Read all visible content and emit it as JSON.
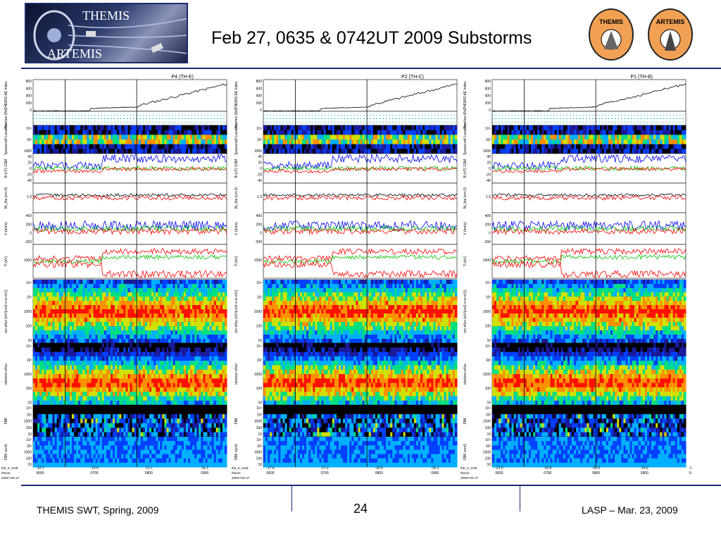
{
  "header": {
    "title": "Feb 27, 0635 & 0742UT 2009 Substorms",
    "logo_top": "THEMIS",
    "logo_bottom": "ARTEMIS",
    "badge_left": "THEMIS",
    "badge_right": "ARTEMIS"
  },
  "footer": {
    "left": "THEMIS SWT, Spring, 2009",
    "page": "24",
    "right": "LASP – Mar. 23, 2009"
  },
  "colors": {
    "accent": "#1c2a7a",
    "badge": "#f2a154"
  },
  "chart_data": [
    {
      "type": "line",
      "title": "P4 (TH-E)",
      "panel_labels": [
        "THEMIS AE Index",
        "Position (Re)",
        "Spacecraft Location",
        "B (nT) GSM",
        "Ni_tha (cm-3)",
        "V (km/s)",
        "Ti (eV)",
        "ion eflux (eV/(cm2-s-sr-eV))",
        "electron eflux",
        "FBK",
        "FBK scm1"
      ],
      "ae_ticks": [
        "800",
        "600",
        "400",
        "200",
        "0"
      ],
      "b_ticks": [
        "40",
        "20",
        "0",
        "-20",
        "-40"
      ],
      "v_ticks": [
        "400",
        "200",
        "0",
        "-200"
      ],
      "spec_ticks": [
        "10⁴",
        "10²",
        "1000",
        "100",
        "10"
      ],
      "x_ticks": [
        "0600",
        "0700",
        "0800",
        "0900"
      ],
      "orbit": {
        "xgse": [
          "-10.7",
          "-10.9",
          "-11.1",
          "-11.1"
        ],
        "ygse": [
          "-1.1",
          "-1.5",
          "-2.4",
          "-3.0"
        ],
        "zgse": [
          "-1.1",
          "-1.3",
          "-2.4",
          "-2.0"
        ]
      },
      "row_labels": [
        "thb_X_GSE",
        "thb_Y_GSE",
        "thb_Z_GSE",
        "hhmm",
        "2009 Feb 27"
      ],
      "ae_values": [
        {
          "t": "0600",
          "v": 0
        },
        {
          "t": "0700",
          "v": 30
        },
        {
          "t": "0800",
          "v": 120
        },
        {
          "t": "0900",
          "v": 520
        },
        {
          "t": "0930",
          "v": 680
        }
      ]
    },
    {
      "type": "line",
      "title": "P2 (TH-C)",
      "x_ticks": [
        "0600",
        "0700",
        "0800",
        "0900"
      ],
      "orbit": {
        "xgse": [
          "-17.6",
          "-17.2",
          "-16.6",
          "-16.1"
        ],
        "ygse": [
          "-1.4",
          "-2.5",
          "-2.2",
          "-2.2"
        ],
        "zgse": [
          "-1.4",
          "-1.5",
          "-1.3",
          "-2.0"
        ]
      }
    },
    {
      "type": "line",
      "title": "P1 (TH-B)",
      "x_ticks": [
        "0600",
        "0700",
        "0800",
        "0900",
        "1000"
      ],
      "orbit": {
        "xgse": [
          "-21.5",
          "-20.8",
          "-20.0",
          "-19.2",
          "-18.3"
        ],
        "ygse": [
          "-0.4",
          "-0.7",
          "-1.0",
          "-1.3",
          "-1.6"
        ],
        "zgse": [
          "-1.2",
          "-1.4",
          "-1.3",
          "-1.2",
          "-1.0"
        ]
      }
    }
  ]
}
